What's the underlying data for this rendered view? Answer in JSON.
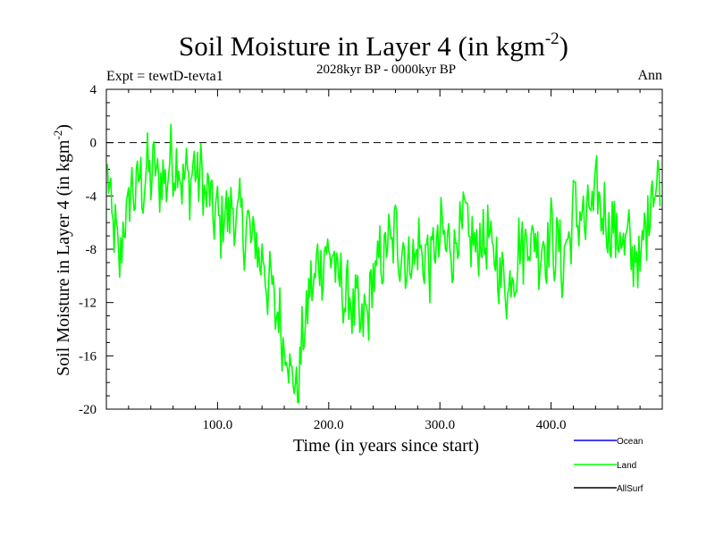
{
  "chart_data": {
    "type": "line",
    "title": "Soil Moisture in Layer 4 (in kgm",
    "title_sup": "-2",
    "title_close": ")",
    "subtitle": "2028kyr BP - 0000kyr BP",
    "expt_label": "Expt = tewtD-tevta1",
    "season_label": "Ann",
    "xlabel": "Time (in years since start)",
    "ylabel": "Soil Moisture in Layer 4 (in kgm",
    "ylabel_sup": "-2",
    "ylabel_close": ")",
    "xlim": [
      0,
      500
    ],
    "ylim": [
      -20,
      4
    ],
    "xticks": [
      100,
      200,
      300,
      400
    ],
    "xtick_labels": [
      "100.0",
      "200.0",
      "300.0",
      "400.0"
    ],
    "yticks": [
      4,
      0,
      -4,
      -8,
      -12,
      -16,
      -20
    ],
    "ytick_labels": [
      "4",
      "0",
      "-4",
      "-8",
      "-12",
      "-16",
      "-20"
    ],
    "reference_line": 0,
    "legend": [
      {
        "name": "Ocean",
        "color": "#0000ff"
      },
      {
        "name": "Land",
        "color": "#00ff00"
      },
      {
        "name": "AllSurf",
        "color": "#000000"
      }
    ],
    "series": [
      {
        "name": "Land",
        "color": "#00ff00",
        "x_start": 1,
        "x_step": 10,
        "values": [
          -3,
          -9,
          -4,
          -3,
          -2,
          -3,
          -1,
          -3,
          -2,
          -4,
          -6,
          -5,
          -6,
          -7,
          -9,
          -12,
          -15,
          -19,
          -12,
          -9,
          -8,
          -11,
          -12,
          -14,
          -10,
          -8,
          -7,
          -9,
          -8,
          -9,
          -7,
          -8,
          -6,
          -8,
          -7,
          -9,
          -11,
          -8,
          -7,
          -8,
          -7,
          -9,
          -5,
          -6,
          -4,
          -6,
          -7,
          -8,
          -9,
          -3
        ]
      }
    ]
  }
}
